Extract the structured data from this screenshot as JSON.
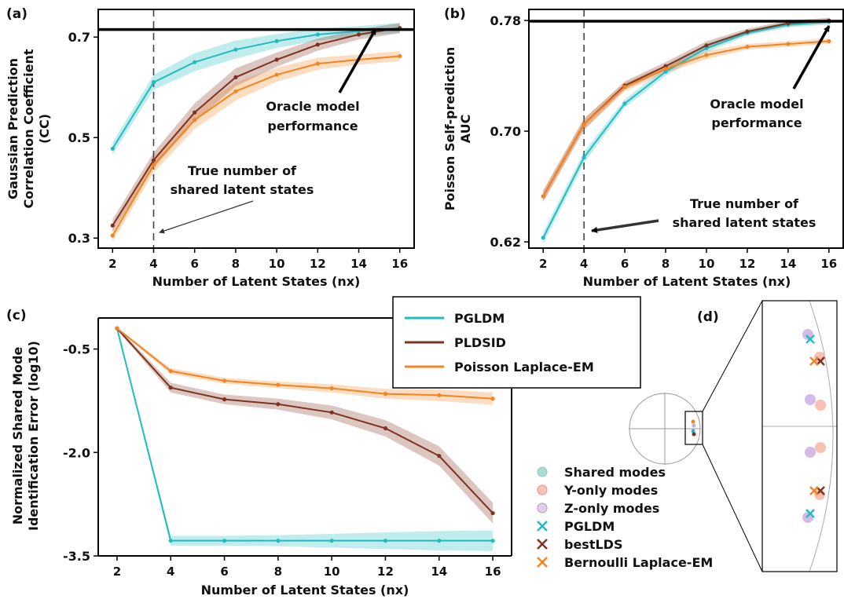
{
  "colors": {
    "pgldm": "#22bcc0",
    "pldsid": "#7e3320",
    "laplace": "#f28424",
    "oracle": "#000000"
  },
  "panel_labels": {
    "a": "(a)",
    "b": "(b)",
    "c": "(c)",
    "d": "(d)"
  },
  "annotations": {
    "oracle": [
      "Oracle model",
      "performance"
    ],
    "truth": [
      "True number of",
      "shared latent states"
    ]
  },
  "legend_c": [
    "PGLDM",
    "PLDSID",
    "Poisson Laplace-EM"
  ],
  "legend_d": [
    "Shared modes",
    "Y-only modes",
    "Z-only modes",
    "PGLDM",
    "bestLDS",
    "Bernoulli Laplace-EM"
  ],
  "chart_data": [
    {
      "panel": "a",
      "type": "line",
      "xlabel": "Number of Latent States (nx)",
      "ylabel": [
        "Gaussian Prediction",
        "Correlation Coefficient",
        "(CC)"
      ],
      "x": [
        2,
        4,
        6,
        8,
        10,
        12,
        14,
        16
      ],
      "xlim": [
        1.3,
        16.7
      ],
      "ylim": [
        0.28,
        0.755
      ],
      "yticks": [
        0.3,
        0.5,
        0.7
      ],
      "ytick_labels": [
        "0.3",
        "0.5",
        "0.7"
      ],
      "xticks": [
        "2",
        "4",
        "6",
        "8",
        "10",
        "12",
        "14",
        "16"
      ],
      "oracle": 0.715,
      "true_nx": 4,
      "series": [
        {
          "key": "pgldm",
          "values": [
            0.478,
            0.61,
            0.65,
            0.675,
            0.692,
            0.705,
            0.712,
            0.718
          ]
        },
        {
          "key": "pldsid",
          "values": [
            0.325,
            0.455,
            0.55,
            0.62,
            0.655,
            0.685,
            0.705,
            0.718
          ]
        },
        {
          "key": "laplace",
          "values": [
            0.305,
            0.445,
            0.535,
            0.592,
            0.625,
            0.647,
            0.655,
            0.662
          ]
        }
      ]
    },
    {
      "panel": "b",
      "type": "line",
      "xlabel": "Number of Latent States (nx)",
      "ylabel": [
        "Poisson Self-prediction",
        "AUC"
      ],
      "x": [
        2,
        4,
        6,
        8,
        10,
        12,
        14,
        16
      ],
      "xlim": [
        1.3,
        16.7
      ],
      "ylim": [
        0.6155,
        0.788
      ],
      "yticks": [
        0.62,
        0.7,
        0.78
      ],
      "ytick_labels": [
        "0.62",
        "0.70",
        "0.78"
      ],
      "xticks": [
        "2",
        "4",
        "6",
        "8",
        "10",
        "12",
        "14",
        "16"
      ],
      "oracle": 0.7795,
      "true_nx": 4,
      "series": [
        {
          "key": "pgldm",
          "values": [
            0.623,
            0.681,
            0.72,
            0.743,
            0.76,
            0.771,
            0.777,
            0.779
          ]
        },
        {
          "key": "pldsid",
          "values": [
            0.653,
            0.705,
            0.733,
            0.747,
            0.762,
            0.772,
            0.778,
            0.78
          ]
        },
        {
          "key": "laplace",
          "values": [
            0.653,
            0.705,
            0.732,
            0.745,
            0.755,
            0.761,
            0.763,
            0.765
          ]
        }
      ]
    },
    {
      "panel": "c",
      "type": "line",
      "xlabel": "Number of Latent States (nx)",
      "ylabel": [
        "Normalized Shared Mode",
        "Identification Error (log10)"
      ],
      "x": [
        2,
        4,
        6,
        8,
        10,
        12,
        14,
        16
      ],
      "xlim": [
        1.3,
        16.7
      ],
      "ylim": [
        -3.5,
        -0.05
      ],
      "yticks": [
        -3.5,
        -2.0,
        -0.5
      ],
      "ytick_labels": [
        "-3.5",
        "-2.0",
        "-0.5"
      ],
      "xticks": [
        "2",
        "4",
        "6",
        "8",
        "10",
        "12",
        "14",
        "16"
      ],
      "series": [
        {
          "key": "pgldm",
          "values": [
            -0.2,
            -3.28,
            -3.28,
            -3.28,
            -3.28,
            -3.28,
            -3.28,
            -3.28
          ]
        },
        {
          "key": "pldsid",
          "values": [
            -0.2,
            -1.06,
            -1.23,
            -1.3,
            -1.42,
            -1.65,
            -2.05,
            -2.88
          ]
        },
        {
          "key": "laplace",
          "values": [
            -0.2,
            -0.82,
            -0.96,
            -1.02,
            -1.07,
            -1.15,
            -1.17,
            -1.22
          ]
        }
      ]
    }
  ]
}
